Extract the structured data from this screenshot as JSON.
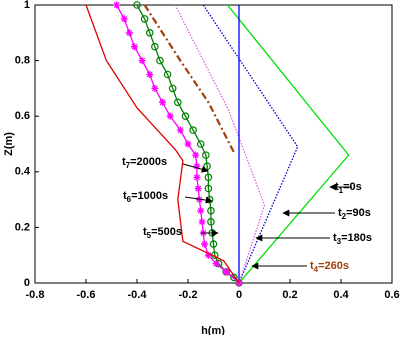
{
  "chart_data": {
    "type": "line",
    "xlabel": "h(m)",
    "ylabel": "Z(m)",
    "xlim": [
      -0.8,
      0.6
    ],
    "ylim": [
      0,
      1
    ],
    "xticks": [
      -0.8,
      -0.6,
      -0.4,
      -0.2,
      0,
      0.2,
      0.4,
      0.6
    ],
    "yticks": [
      0,
      0.2,
      0.4,
      0.6,
      0.8,
      1
    ],
    "series": [
      {
        "color": "#00e000",
        "style": "solid",
        "x": [
          -0.045,
          0.43,
          0
        ],
        "values": [
          1,
          0.46,
          0
        ]
      },
      {
        "color": "#0000cc",
        "style": "dotted",
        "x": [
          -0.14,
          0.23,
          0
        ],
        "values": [
          1,
          0.49,
          0
        ]
      },
      {
        "color": "#e060e0",
        "style": "dotted",
        "x": [
          -0.25,
          -0.04,
          0.1,
          0
        ],
        "values": [
          1,
          0.62,
          0.28,
          0
        ]
      },
      {
        "color": "#a0400c",
        "style": "dashdot",
        "x": [
          -0.37,
          -0.23,
          -0.12,
          -0.02
        ],
        "values": [
          1,
          0.8,
          0.65,
          0.47
        ]
      },
      {
        "color": "#0000ff",
        "style": "solid",
        "x": [
          0,
          0
        ],
        "values": [
          0,
          1
        ]
      },
      {
        "color": "#008000",
        "style": "solid",
        "marker": "circle",
        "x": [
          -0.4,
          -0.37,
          -0.35,
          -0.33,
          -0.31,
          -0.28,
          -0.26,
          -0.24,
          -0.21,
          -0.18,
          -0.15,
          -0.13,
          -0.125,
          -0.12,
          -0.12,
          -0.115,
          -0.11,
          -0.11,
          -0.105,
          -0.1,
          -0.095,
          -0.08,
          -0.05,
          -0.02,
          0
        ],
        "values": [
          1,
          0.95,
          0.9,
          0.85,
          0.8,
          0.75,
          0.7,
          0.65,
          0.6,
          0.55,
          0.5,
          0.46,
          0.42,
          0.38,
          0.34,
          0.3,
          0.26,
          0.22,
          0.18,
          0.14,
          0.1,
          0.07,
          0.04,
          0.02,
          0
        ]
      },
      {
        "color": "#ff00ff",
        "style": "solid",
        "marker": "star",
        "x": [
          -0.48,
          -0.45,
          -0.43,
          -0.41,
          -0.38,
          -0.35,
          -0.33,
          -0.3,
          -0.27,
          -0.23,
          -0.2,
          -0.17,
          -0.165,
          -0.165,
          -0.16,
          -0.155,
          -0.15,
          -0.145,
          -0.14,
          -0.135,
          -0.12,
          -0.09,
          -0.05,
          0
        ],
        "values": [
          1,
          0.95,
          0.9,
          0.85,
          0.8,
          0.75,
          0.7,
          0.65,
          0.6,
          0.55,
          0.5,
          0.46,
          0.42,
          0.38,
          0.34,
          0.3,
          0.26,
          0.22,
          0.18,
          0.14,
          0.1,
          0.07,
          0.04,
          0
        ]
      },
      {
        "color": "#e00000",
        "style": "solid",
        "x": [
          -0.6,
          -0.52,
          -0.4,
          -0.25,
          -0.22,
          -0.24,
          -0.22,
          -0.06,
          0
        ],
        "values": [
          1,
          0.8,
          0.63,
          0.48,
          0.44,
          0.3,
          0.15,
          0.08,
          0
        ]
      }
    ],
    "annotations": [
      {
        "base": "t",
        "subscript": "1",
        "text": "=0s",
        "color": "#000000"
      },
      {
        "base": "t",
        "subscript": "2",
        "text": "=90s",
        "color": "#000000"
      },
      {
        "base": "t",
        "subscript": "3",
        "text": "=180s",
        "color": "#000000"
      },
      {
        "base": "t",
        "subscript": "4",
        "text": "=260s",
        "color": "#a0400c"
      },
      {
        "base": "t",
        "subscript": "5",
        "text": "=500s",
        "color": "#000000"
      },
      {
        "base": "t",
        "subscript": "6",
        "text": "=1000s",
        "color": "#000000"
      },
      {
        "base": "t",
        "subscript": "7",
        "text": "=2000s",
        "color": "#000000"
      }
    ]
  }
}
